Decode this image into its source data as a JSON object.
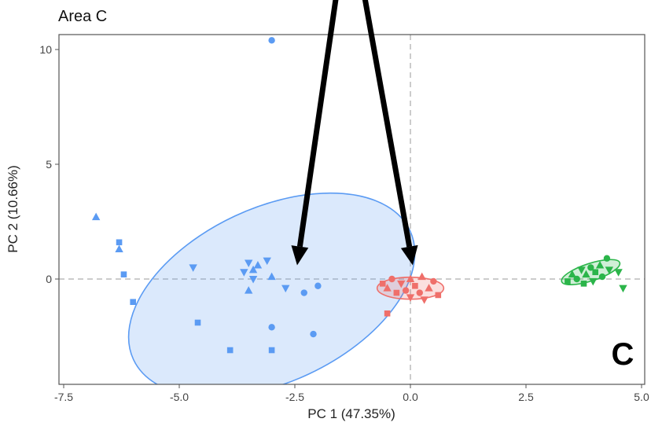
{
  "chart_data": {
    "type": "scatter",
    "title": "Area C",
    "panel_label": "C",
    "xlabel": "PC 1 (47.35%)",
    "ylabel": "PC 2 (10.66%)",
    "xlim": [
      -7.5,
      5.0
    ],
    "ylim": [
      -4.6,
      11.0
    ],
    "xticks": [
      -7.5,
      -5.0,
      -2.5,
      0.0,
      2.5,
      5.0
    ],
    "xtick_labels": [
      "-7.5",
      "-5.0",
      "-2.5",
      "0.0",
      "2.5",
      "5.0"
    ],
    "yticks": [
      0,
      5,
      10
    ],
    "ytick_labels": [
      "0",
      "5",
      "10"
    ],
    "grid": false,
    "reference_lines": {
      "x": 0,
      "y": 0,
      "style": "dashed"
    },
    "colors": {
      "blue": "#5b9bf3",
      "red": "#ef6f6a",
      "green": "#2bb54a"
    },
    "series": [
      {
        "color": "blue",
        "ellipse": {
          "cx": -3.0,
          "cy": -0.7,
          "rx": 3.3,
          "ry": 3.8,
          "angle_deg": -25
        },
        "points": [
          {
            "x": -3.0,
            "y": 10.4,
            "shape": "circle"
          },
          {
            "x": -6.8,
            "y": 2.7,
            "shape": "triangle"
          },
          {
            "x": -6.3,
            "y": 1.6,
            "shape": "square"
          },
          {
            "x": -6.3,
            "y": 1.3,
            "shape": "triangle"
          },
          {
            "x": -6.2,
            "y": 0.2,
            "shape": "square"
          },
          {
            "x": -6.0,
            "y": -1.0,
            "shape": "square"
          },
          {
            "x": -4.7,
            "y": 0.5,
            "shape": "triangle-down"
          },
          {
            "x": -4.6,
            "y": -1.9,
            "shape": "square"
          },
          {
            "x": -3.9,
            "y": -3.1,
            "shape": "square"
          },
          {
            "x": -3.6,
            "y": 0.3,
            "shape": "triangle-down"
          },
          {
            "x": -3.5,
            "y": 0.7,
            "shape": "triangle-down"
          },
          {
            "x": -3.4,
            "y": 0.4,
            "shape": "triangle"
          },
          {
            "x": -3.4,
            "y": 0.0,
            "shape": "triangle-down"
          },
          {
            "x": -3.3,
            "y": 0.6,
            "shape": "triangle"
          },
          {
            "x": -3.1,
            "y": 0.8,
            "shape": "triangle-down"
          },
          {
            "x": -3.0,
            "y": 0.1,
            "shape": "triangle"
          },
          {
            "x": -3.5,
            "y": -0.5,
            "shape": "triangle"
          },
          {
            "x": -2.7,
            "y": -0.4,
            "shape": "triangle-down"
          },
          {
            "x": -3.0,
            "y": -2.1,
            "shape": "circle"
          },
          {
            "x": -3.0,
            "y": -3.1,
            "shape": "square"
          },
          {
            "x": -2.3,
            "y": -0.6,
            "shape": "circle"
          },
          {
            "x": -2.0,
            "y": -0.3,
            "shape": "circle"
          },
          {
            "x": -2.1,
            "y": -2.4,
            "shape": "circle"
          }
        ]
      },
      {
        "color": "red",
        "ellipse": {
          "cx": 0.0,
          "cy": -0.4,
          "rx": 0.72,
          "ry": 0.48,
          "angle_deg": 0
        },
        "points": [
          {
            "x": -0.6,
            "y": -0.2,
            "shape": "square"
          },
          {
            "x": -0.5,
            "y": -0.4,
            "shape": "triangle"
          },
          {
            "x": -0.4,
            "y": 0.0,
            "shape": "circle"
          },
          {
            "x": -0.3,
            "y": -0.6,
            "shape": "square"
          },
          {
            "x": -0.2,
            "y": -0.2,
            "shape": "triangle-down"
          },
          {
            "x": -0.1,
            "y": -0.5,
            "shape": "circle"
          },
          {
            "x": 0.0,
            "y": 0.0,
            "shape": "triangle"
          },
          {
            "x": 0.0,
            "y": -0.8,
            "shape": "triangle-down"
          },
          {
            "x": 0.1,
            "y": -0.3,
            "shape": "square"
          },
          {
            "x": 0.2,
            "y": -0.6,
            "shape": "circle"
          },
          {
            "x": 0.25,
            "y": 0.1,
            "shape": "triangle"
          },
          {
            "x": 0.3,
            "y": -0.9,
            "shape": "triangle-down"
          },
          {
            "x": 0.4,
            "y": -0.4,
            "shape": "triangle"
          },
          {
            "x": 0.5,
            "y": -0.1,
            "shape": "circle"
          },
          {
            "x": 0.6,
            "y": -0.7,
            "shape": "square"
          },
          {
            "x": -0.5,
            "y": -1.5,
            "shape": "square"
          }
        ]
      },
      {
        "color": "green",
        "ellipse": {
          "cx": 3.9,
          "cy": 0.3,
          "rx": 0.66,
          "ry": 0.38,
          "angle_deg": -18
        },
        "points": [
          {
            "x": 3.4,
            "y": -0.1,
            "shape": "square"
          },
          {
            "x": 3.5,
            "y": 0.2,
            "shape": "triangle"
          },
          {
            "x": 3.6,
            "y": 0.0,
            "shape": "circle"
          },
          {
            "x": 3.7,
            "y": 0.4,
            "shape": "triangle-down"
          },
          {
            "x": 3.75,
            "y": -0.2,
            "shape": "square"
          },
          {
            "x": 3.8,
            "y": 0.2,
            "shape": "triangle"
          },
          {
            "x": 3.9,
            "y": 0.5,
            "shape": "circle"
          },
          {
            "x": 3.95,
            "y": -0.1,
            "shape": "triangle-down"
          },
          {
            "x": 4.0,
            "y": 0.3,
            "shape": "square"
          },
          {
            "x": 4.1,
            "y": 0.6,
            "shape": "triangle"
          },
          {
            "x": 4.15,
            "y": 0.1,
            "shape": "circle"
          },
          {
            "x": 4.25,
            "y": 0.9,
            "shape": "circle"
          },
          {
            "x": 4.3,
            "y": 0.4,
            "shape": "triangle-down"
          },
          {
            "x": 4.5,
            "y": 0.3,
            "shape": "triangle-down"
          },
          {
            "x": 4.6,
            "y": -0.4,
            "shape": "triangle-down"
          }
        ]
      }
    ],
    "annotations": [
      {
        "type": "arrow",
        "from": [
          -1.6,
          12.4
        ],
        "to": [
          -2.45,
          0.6
        ]
      },
      {
        "type": "arrow",
        "from": [
          -1.0,
          12.4
        ],
        "to": [
          0.05,
          0.6
        ]
      }
    ]
  }
}
